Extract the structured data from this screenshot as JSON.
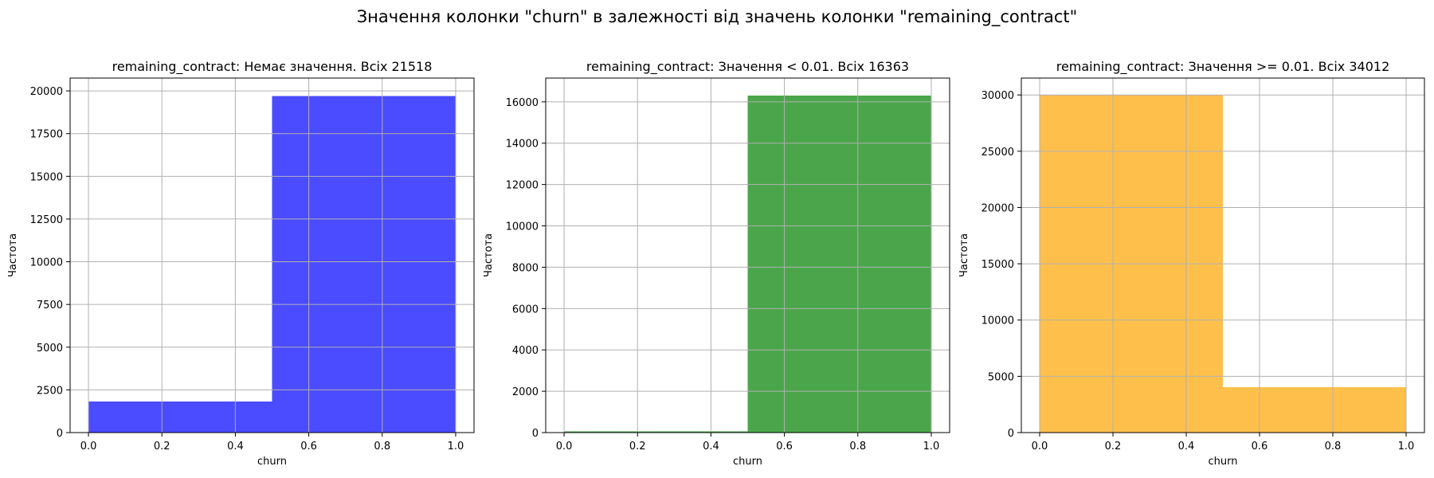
{
  "figure": {
    "title": "Значення колонки \"churn\" в залежності від значень колонки \"remaining_contract\""
  },
  "chart_data": [
    {
      "type": "bar",
      "title": "remaining_contract: Немає значення. Всіх 21518",
      "xlabel": "churn",
      "ylabel": "Частота",
      "bins": [
        [
          0.0,
          0.5
        ],
        [
          0.5,
          1.0
        ]
      ],
      "values": [
        1820,
        19698
      ],
      "color": "#4b4bff",
      "xlim": [
        -0.05,
        1.05
      ],
      "ylim": [
        0,
        20750
      ],
      "xticks": [
        0.0,
        0.2,
        0.4,
        0.6,
        0.8,
        1.0
      ],
      "xtick_labels": [
        "0.0",
        "0.2",
        "0.4",
        "0.6",
        "0.8",
        "1.0"
      ],
      "yticks": [
        0,
        2500,
        5000,
        7500,
        10000,
        12500,
        15000,
        17500,
        20000
      ],
      "ytick_labels": [
        "0",
        "2500",
        "5000",
        "7500",
        "10000",
        "12500",
        "15000",
        "17500",
        "20000"
      ],
      "grid": true
    },
    {
      "type": "bar",
      "title": "remaining_contract: Значення < 0.01. Всіх 16363",
      "xlabel": "churn",
      "ylabel": "Частота",
      "bins": [
        [
          0.0,
          0.5
        ],
        [
          0.5,
          1.0
        ]
      ],
      "values": [
        60,
        16303
      ],
      "color": "#4ba64b",
      "xlim": [
        -0.05,
        1.05
      ],
      "ylim": [
        0,
        17150
      ],
      "xticks": [
        0.0,
        0.2,
        0.4,
        0.6,
        0.8,
        1.0
      ],
      "xtick_labels": [
        "0.0",
        "0.2",
        "0.4",
        "0.6",
        "0.8",
        "1.0"
      ],
      "yticks": [
        0,
        2000,
        4000,
        6000,
        8000,
        10000,
        12000,
        14000,
        16000
      ],
      "ytick_labels": [
        "0",
        "2000",
        "4000",
        "6000",
        "8000",
        "10000",
        "12000",
        "14000",
        "16000"
      ],
      "grid": true
    },
    {
      "type": "bar",
      "title": "remaining_contract: Значення >= 0.01. Всіх 34012",
      "xlabel": "churn",
      "ylabel": "Частота",
      "bins": [
        [
          0.0,
          0.5
        ],
        [
          0.5,
          1.0
        ]
      ],
      "values": [
        29977,
        4035
      ],
      "color": "#ffbf4b",
      "xlim": [
        -0.05,
        1.05
      ],
      "ylim": [
        0,
        31500
      ],
      "xticks": [
        0.0,
        0.2,
        0.4,
        0.6,
        0.8,
        1.0
      ],
      "xtick_labels": [
        "0.0",
        "0.2",
        "0.4",
        "0.6",
        "0.8",
        "1.0"
      ],
      "yticks": [
        0,
        5000,
        10000,
        15000,
        20000,
        25000,
        30000
      ],
      "ytick_labels": [
        "0",
        "5000",
        "10000",
        "15000",
        "20000",
        "25000",
        "30000"
      ],
      "grid": true
    }
  ]
}
